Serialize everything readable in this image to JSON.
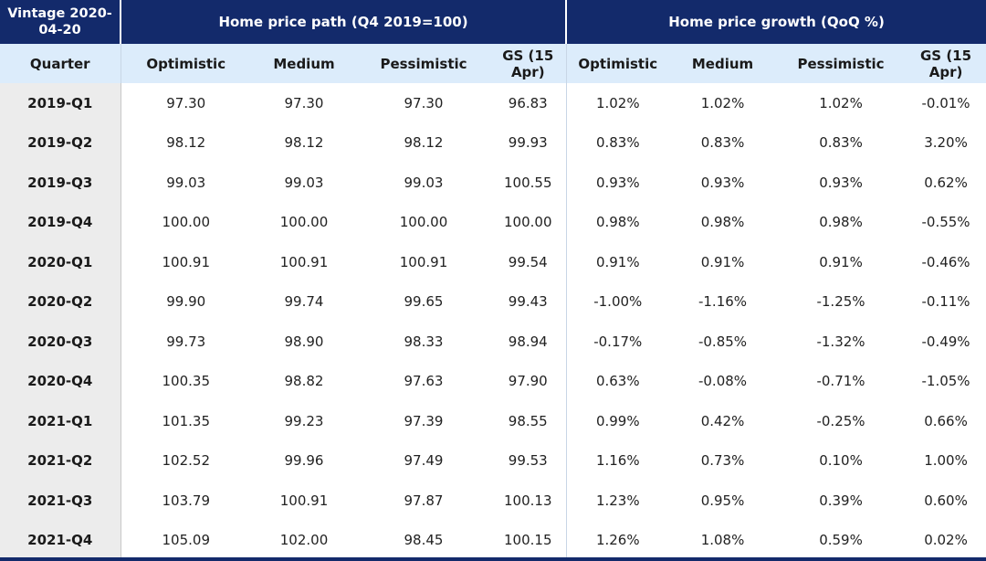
{
  "table": {
    "vintage": "Vintage 2020-04-20",
    "group_path": "Home price path (Q4 2019=100)",
    "group_growth": "Home price growth (QoQ %)",
    "col_quarter": "Quarter",
    "path_cols": [
      "Optimistic",
      "Medium",
      "Pessimistic",
      "GS (15 Apr)"
    ],
    "growth_cols": [
      "Optimistic",
      "Medium",
      "Pessimistic",
      "GS (15 Apr)"
    ],
    "rows": [
      {
        "q": "2019-Q1",
        "v": [
          "97.30",
          "97.30",
          "97.30",
          "96.83",
          "1.02%",
          "1.02%",
          "1.02%",
          "-0.01%"
        ]
      },
      {
        "q": "2019-Q2",
        "v": [
          "98.12",
          "98.12",
          "98.12",
          "99.93",
          "0.83%",
          "0.83%",
          "0.83%",
          "3.20%"
        ]
      },
      {
        "q": "2019-Q3",
        "v": [
          "99.03",
          "99.03",
          "99.03",
          "100.55",
          "0.93%",
          "0.93%",
          "0.93%",
          "0.62%"
        ]
      },
      {
        "q": "2019-Q4",
        "v": [
          "100.00",
          "100.00",
          "100.00",
          "100.00",
          "0.98%",
          "0.98%",
          "0.98%",
          "-0.55%"
        ]
      },
      {
        "q": "2020-Q1",
        "v": [
          "100.91",
          "100.91",
          "100.91",
          "99.54",
          "0.91%",
          "0.91%",
          "0.91%",
          "-0.46%"
        ]
      },
      {
        "q": "2020-Q2",
        "v": [
          "99.90",
          "99.74",
          "99.65",
          "99.43",
          "-1.00%",
          "-1.16%",
          "-1.25%",
          "-0.11%"
        ]
      },
      {
        "q": "2020-Q3",
        "v": [
          "99.73",
          "98.90",
          "98.33",
          "98.94",
          "-0.17%",
          "-0.85%",
          "-1.32%",
          "-0.49%"
        ]
      },
      {
        "q": "2020-Q4",
        "v": [
          "100.35",
          "98.82",
          "97.63",
          "97.90",
          "0.63%",
          "-0.08%",
          "-0.71%",
          "-1.05%"
        ]
      },
      {
        "q": "2021-Q1",
        "v": [
          "101.35",
          "99.23",
          "97.39",
          "98.55",
          "0.99%",
          "0.42%",
          "-0.25%",
          "0.66%"
        ]
      },
      {
        "q": "2021-Q2",
        "v": [
          "102.52",
          "99.96",
          "97.49",
          "99.53",
          "1.16%",
          "0.73%",
          "0.10%",
          "1.00%"
        ]
      },
      {
        "q": "2021-Q3",
        "v": [
          "103.79",
          "100.91",
          "97.87",
          "100.13",
          "1.23%",
          "0.95%",
          "0.39%",
          "0.60%"
        ]
      },
      {
        "q": "2021-Q4",
        "v": [
          "105.09",
          "102.00",
          "98.45",
          "100.15",
          "1.26%",
          "1.08%",
          "0.59%",
          "0.02%"
        ]
      }
    ]
  }
}
